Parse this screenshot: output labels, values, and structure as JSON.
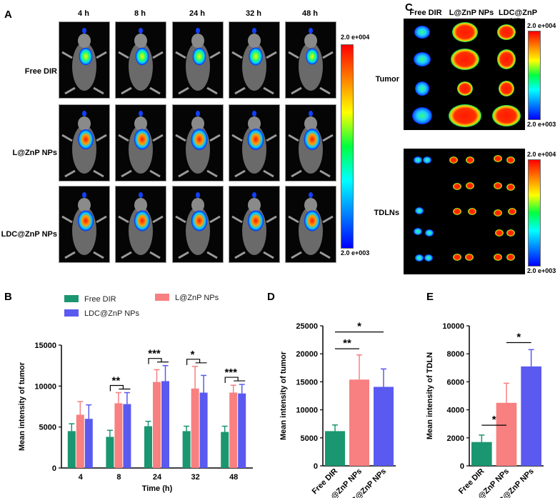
{
  "panel_labels": {
    "A": "A",
    "B": "B",
    "C": "C",
    "D": "D",
    "E": "E"
  },
  "panel_a": {
    "timepoints": [
      "4 h",
      "8 h",
      "24 h",
      "32 h",
      "48 h"
    ],
    "groups": [
      "Free DIR",
      "L@ZnP NPs",
      "LDC@ZnP NPs"
    ],
    "colorbar_max": "2.0 e+004",
    "colorbar_min": "2.0 e+003",
    "signal_levels": [
      [
        0.55,
        0.55,
        0.55,
        0.6,
        0.45
      ],
      [
        0.8,
        0.85,
        0.9,
        0.9,
        0.9
      ],
      [
        0.85,
        0.85,
        0.85,
        0.85,
        0.85
      ]
    ]
  },
  "panel_c": {
    "columns": [
      "Free DIR",
      "L@ZnP NPs",
      "LDC@ZnP NPs"
    ],
    "rows": [
      "Tumor",
      "TDLNs"
    ],
    "colorbar_max": "2.0 e+004",
    "colorbar_min": "2.0 e+003"
  },
  "chart_data": [
    {
      "type": "bar",
      "panel": "B",
      "categories": [
        "4",
        "8",
        "24",
        "32",
        "48"
      ],
      "series": [
        {
          "name": "Free DIR",
          "color": "#1a9670",
          "values": [
            4500,
            3800,
            5100,
            4500,
            4400
          ],
          "errors": [
            900,
            800,
            600,
            600,
            700
          ]
        },
        {
          "name": "L@ZnP NPs",
          "color": "#f88080",
          "values": [
            6500,
            7900,
            10500,
            9700,
            9200
          ],
          "errors": [
            1600,
            1300,
            1500,
            2700,
            900
          ]
        },
        {
          "name": "LDC@ZnP NPs",
          "color": "#5a5af0",
          "values": [
            6000,
            7800,
            10600,
            9200,
            9100
          ],
          "errors": [
            1700,
            1400,
            1900,
            2100,
            1100
          ]
        }
      ],
      "xlabel": "Time (h)",
      "ylabel": "Mean intensity of tumor",
      "ylim": [
        0,
        15000
      ],
      "yticks": [
        "0",
        "5000",
        "10000",
        "15000"
      ],
      "sig": [
        "**",
        "***",
        "*",
        "***"
      ]
    },
    {
      "type": "bar",
      "panel": "D",
      "categories": [
        "Free DIR",
        "L@ZnP NPs",
        "LDC@ZnP NPs"
      ],
      "values": [
        6200,
        15400,
        14100
      ],
      "errors": [
        1100,
        4400,
        3200
      ],
      "colors": [
        "#1a9670",
        "#f88080",
        "#5a5af0"
      ],
      "ylabel": "Mean intensity of tumor",
      "ylim": [
        0,
        25000
      ],
      "yticks": [
        "0",
        "5000",
        "10000",
        "15000",
        "20000",
        "25000"
      ],
      "sig": [
        "**",
        "*"
      ]
    },
    {
      "type": "bar",
      "panel": "E",
      "categories": [
        "Free DIR",
        "L@ZnP NPs",
        "LDC@ZnP NPs"
      ],
      "values": [
        1700,
        4500,
        7100
      ],
      "errors": [
        500,
        1400,
        1200
      ],
      "colors": [
        "#1a9670",
        "#f88080",
        "#5a5af0"
      ],
      "ylabel": "Mean intensity of TDLN",
      "ylim": [
        0,
        10000
      ],
      "yticks": [
        "0",
        "2000",
        "4000",
        "6000",
        "8000",
        "10000"
      ],
      "sig": [
        "*",
        "*"
      ]
    }
  ]
}
